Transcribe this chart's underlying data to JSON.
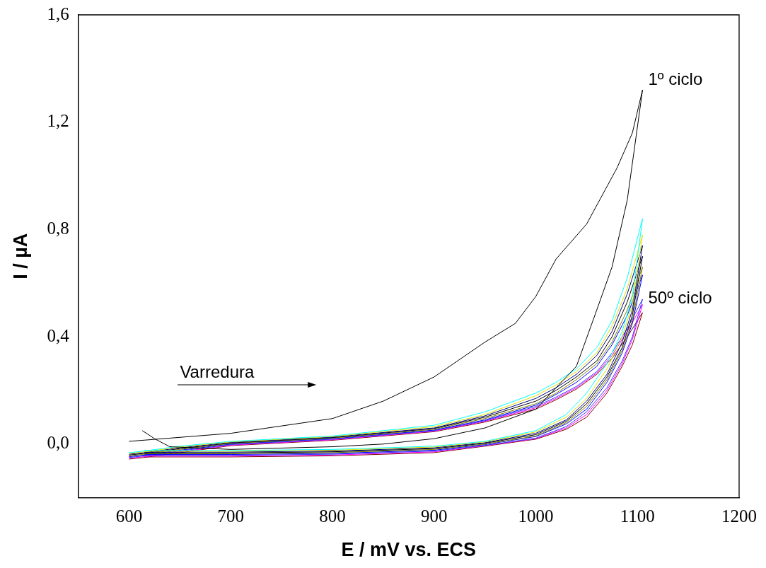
{
  "chart_data": {
    "type": "line",
    "xlabel": "E / mV vs. ECS",
    "ylabel": "I / µA",
    "xlim": [
      550,
      1200
    ],
    "xticks": [
      600,
      700,
      800,
      900,
      1000,
      1100,
      1200
    ],
    "ylim": [
      -0.2,
      1.6
    ],
    "yticks": [
      {
        "value": 0,
        "label": "0,0"
      },
      {
        "value": 0.4,
        "label": "0,4"
      },
      {
        "value": 0.8,
        "label": "0,8"
      },
      {
        "value": 1.2,
        "label": "1,2"
      },
      {
        "value": 1.6,
        "label": "1,6"
      }
    ],
    "grid": false,
    "legend": false,
    "marker": "none",
    "line_style": "solid",
    "annotations": [
      {
        "text": "1º ciclo",
        "x": 1105,
        "y": 1.32
      },
      {
        "text": "50º ciclo",
        "x": 1105,
        "y": 0.49
      },
      "Varredura"
    ],
    "x": [
      615,
      700,
      800,
      900,
      950,
      1000,
      1030,
      1050,
      1070,
      1085,
      1095,
      1105,
      1090,
      1075,
      1060,
      1040,
      1020,
      1000,
      950,
      900,
      800,
      700,
      650,
      615,
      600
    ],
    "series": [
      {
        "color": "#000000",
        "x": [
          600,
          700,
          800,
          850,
          900,
          950,
          980,
          1000,
          1020,
          1050,
          1080,
          1095,
          1105,
          1090,
          1075,
          1060,
          1040,
          1000,
          950,
          900,
          850,
          800,
          700,
          640,
          625,
          613
        ],
        "values": [
          0.01,
          0.04,
          0.095,
          0.16,
          0.25,
          0.38,
          0.45,
          0.55,
          0.69,
          0.82,
          1.03,
          1.16,
          1.32,
          0.91,
          0.66,
          0.5,
          0.29,
          0.13,
          0.06,
          0.02,
          0.0,
          -0.01,
          -0.02,
          -0.01,
          0.02,
          0.05
        ]
      },
      {
        "color": "#00ffff",
        "values": [
          -0.024,
          -0.024,
          -0.02,
          -0.008,
          0.01,
          0.05,
          0.11,
          0.19,
          0.3,
          0.42,
          0.55,
          0.84,
          0.62,
          0.46,
          0.36,
          0.28,
          0.23,
          0.19,
          0.12,
          0.07,
          0.03,
          0.01,
          -0.008,
          -0.026,
          -0.032
        ]
      },
      {
        "color": "#e0e000",
        "values": [
          -0.027,
          -0.027,
          -0.023,
          -0.011,
          0.008,
          0.045,
          0.1,
          0.17,
          0.28,
          0.4,
          0.52,
          0.78,
          0.58,
          0.44,
          0.34,
          0.27,
          0.22,
          0.18,
          0.11,
          0.065,
          0.028,
          0.008,
          -0.011,
          -0.029,
          -0.035
        ]
      },
      {
        "color": "#000080",
        "values": [
          -0.03,
          -0.03,
          -0.026,
          -0.014,
          0.005,
          0.04,
          0.09,
          0.16,
          0.26,
          0.38,
          0.5,
          0.74,
          0.56,
          0.42,
          0.33,
          0.26,
          0.21,
          0.17,
          0.105,
          0.06,
          0.026,
          0.006,
          -0.014,
          -0.032,
          -0.038
        ]
      },
      {
        "color": "#000000",
        "values": [
          -0.033,
          -0.033,
          -0.029,
          -0.017,
          0.003,
          0.035,
          0.085,
          0.15,
          0.25,
          0.36,
          0.48,
          0.7,
          0.53,
          0.4,
          0.31,
          0.25,
          0.2,
          0.16,
          0.1,
          0.058,
          0.024,
          0.004,
          -0.017,
          -0.035,
          -0.041
        ]
      },
      {
        "color": "#808000",
        "values": [
          -0.036,
          -0.036,
          -0.032,
          -0.02,
          0.0,
          0.03,
          0.08,
          0.14,
          0.24,
          0.35,
          0.46,
          0.66,
          0.5,
          0.38,
          0.3,
          0.24,
          0.19,
          0.15,
          0.095,
          0.055,
          0.022,
          0.002,
          -0.02,
          -0.038,
          -0.044
        ]
      },
      {
        "color": "#0000ff",
        "values": [
          -0.039,
          -0.039,
          -0.035,
          -0.023,
          -0.002,
          0.028,
          0.075,
          0.13,
          0.23,
          0.34,
          0.45,
          0.63,
          0.48,
          0.37,
          0.29,
          0.23,
          0.185,
          0.145,
          0.09,
          0.052,
          0.02,
          0.0,
          -0.023,
          -0.041,
          -0.047
        ]
      },
      {
        "color": "#3333ff",
        "values": [
          -0.042,
          -0.042,
          -0.038,
          -0.026,
          -0.005,
          0.022,
          0.065,
          0.12,
          0.21,
          0.31,
          0.4,
          0.54,
          0.43,
          0.34,
          0.27,
          0.215,
          0.175,
          0.14,
          0.087,
          0.05,
          0.018,
          -0.002,
          -0.026,
          -0.044,
          -0.05
        ]
      },
      {
        "color": "#ff00ff",
        "values": [
          -0.045,
          -0.045,
          -0.041,
          -0.029,
          -0.006,
          0.02,
          0.06,
          0.11,
          0.2,
          0.3,
          0.39,
          0.52,
          0.42,
          0.33,
          0.265,
          0.21,
          0.17,
          0.135,
          0.085,
          0.048,
          0.016,
          -0.004,
          -0.029,
          -0.047,
          -0.053
        ]
      },
      {
        "color": "#800000",
        "values": [
          -0.048,
          -0.048,
          -0.044,
          -0.032,
          -0.008,
          0.018,
          0.055,
          0.1,
          0.19,
          0.29,
          0.37,
          0.49,
          0.4,
          0.32,
          0.26,
          0.205,
          0.165,
          0.13,
          0.082,
          0.046,
          0.014,
          -0.006,
          -0.032,
          -0.05,
          -0.056
        ]
      }
    ]
  }
}
